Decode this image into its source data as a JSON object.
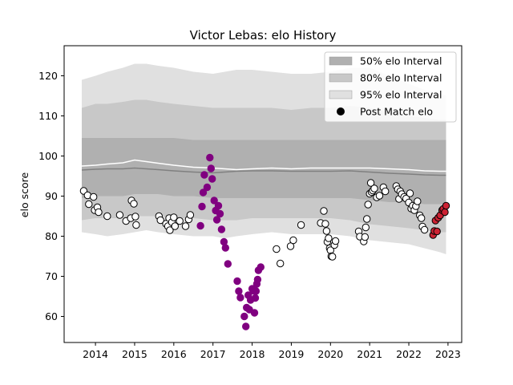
{
  "chart_data": {
    "type": "scatter",
    "title": "Victor Lebas: elo History",
    "xlabel": "",
    "ylabel": "elo score",
    "xlim": [
      2013.2,
      2023.35
    ],
    "ylim": [
      53.5,
      127.5
    ],
    "x_ticks": [
      2014,
      2015,
      2016,
      2017,
      2018,
      2019,
      2020,
      2021,
      2022,
      2023
    ],
    "y_ticks": [
      60,
      70,
      80,
      90,
      100,
      110,
      120
    ],
    "grid": false,
    "legend_position": "top-right",
    "legend": [
      {
        "label": "50% elo Interval",
        "kind": "band",
        "color": "#b0b0b0"
      },
      {
        "label": "80% elo Interval",
        "kind": "band",
        "color": "#c8c8c8"
      },
      {
        "label": "95% elo Interval",
        "kind": "band",
        "color": "#e0e0e0"
      },
      {
        "label": "Post Match elo",
        "kind": "point",
        "color": "#000000"
      }
    ],
    "colors": {
      "band_50": "#b0b0b0",
      "band_80": "#c8c8c8",
      "band_95": "#e0e0e0",
      "median_line": "#808080",
      "mean_line": "#ffffff",
      "point_default": "#ffffff",
      "point_purple": "#800080",
      "point_red": "#cc2233"
    },
    "bands": {
      "x": [
        2013.65,
        2014.0,
        2014.3,
        2014.7,
        2015.0,
        2015.3,
        2015.6,
        2016.0,
        2016.5,
        2017.0,
        2017.3,
        2017.6,
        2018.0,
        2018.5,
        2019.0,
        2019.5,
        2020.0,
        2020.5,
        2021.0,
        2021.5,
        2022.0,
        2022.4,
        2022.8,
        2022.95
      ],
      "p95_low": [
        81,
        80.5,
        80,
        80.5,
        81,
        81.5,
        81,
        80.5,
        80,
        80,
        79.5,
        80,
        80.5,
        81,
        80.5,
        80.5,
        80.5,
        80,
        79,
        78.5,
        78,
        77,
        76,
        75.5
      ],
      "p95_high": [
        119,
        120,
        121,
        122,
        123,
        123,
        122.5,
        122,
        121,
        120.5,
        121,
        121.5,
        121.5,
        121,
        120.5,
        120.5,
        121,
        122,
        122,
        120,
        118,
        116.5,
        115.5,
        115
      ],
      "p80_low": [
        84,
        84.5,
        84.5,
        84.5,
        85,
        85,
        85,
        84.5,
        84.5,
        84,
        84,
        84,
        84.5,
        84.5,
        84.5,
        84.5,
        84.5,
        84,
        83,
        82.5,
        82,
        81.5,
        81,
        81
      ],
      "p80_high": [
        112,
        113,
        113,
        113.5,
        114,
        114,
        113.5,
        113,
        112.5,
        112,
        112,
        112,
        112,
        112,
        111.5,
        112,
        112,
        112.5,
        112,
        111,
        110,
        109.5,
        109,
        109
      ],
      "p50_low": [
        89.5,
        90,
        90,
        90,
        90.5,
        90.5,
        90.5,
        90,
        90,
        89.5,
        89.5,
        89.5,
        89.5,
        89.5,
        89.5,
        89.5,
        89.5,
        89.5,
        89,
        88.5,
        88.5,
        88,
        88,
        88
      ],
      "p50_high": [
        104.5,
        104.5,
        104.5,
        104.5,
        104.5,
        104.5,
        104.5,
        104.5,
        104,
        104,
        104,
        104,
        104,
        104,
        104,
        104,
        104,
        104,
        104,
        104,
        104,
        104,
        104,
        104
      ],
      "median": [
        96.5,
        96.7,
        96.8,
        96.8,
        97.0,
        96.8,
        96.6,
        96.3,
        96.0,
        95.8,
        96.0,
        96.2,
        96.3,
        96.3,
        96.2,
        96.2,
        96.2,
        96.3,
        96.0,
        95.7,
        95.5,
        95.3,
        95.2,
        95.2
      ],
      "mean": [
        97.5,
        97.7,
        98.0,
        98.3,
        99.0,
        98.6,
        98.2,
        97.7,
        97.2,
        97.0,
        96.8,
        96.6,
        96.8,
        97.0,
        96.8,
        97.0,
        97.0,
        97.0,
        97.0,
        96.8,
        96.6,
        96.3,
        96.2,
        96.2
      ]
    },
    "points_default": [
      [
        2013.7,
        91.3
      ],
      [
        2013.8,
        90.2
      ],
      [
        2013.83,
        88.0
      ],
      [
        2013.95,
        89.8
      ],
      [
        2013.98,
        86.5
      ],
      [
        2014.05,
        87.2
      ],
      [
        2014.08,
        86.0
      ],
      [
        2014.3,
        85.0
      ],
      [
        2014.62,
        85.3
      ],
      [
        2014.78,
        83.8
      ],
      [
        2014.9,
        84.5
      ],
      [
        2014.92,
        88.9
      ],
      [
        2014.98,
        88.1
      ],
      [
        2015.02,
        84.9
      ],
      [
        2015.04,
        82.8
      ],
      [
        2015.62,
        85.0
      ],
      [
        2015.66,
        84.0
      ],
      [
        2015.8,
        83.1
      ],
      [
        2015.85,
        82.5
      ],
      [
        2015.88,
        84.5
      ],
      [
        2015.9,
        81.5
      ],
      [
        2015.95,
        83.5
      ],
      [
        2016.0,
        84.7
      ],
      [
        2016.03,
        82.5
      ],
      [
        2016.15,
        83.8
      ],
      [
        2016.3,
        82.5
      ],
      [
        2016.38,
        84.2
      ],
      [
        2016.42,
        85.3
      ],
      [
        2018.62,
        76.8
      ],
      [
        2018.72,
        73.2
      ],
      [
        2018.98,
        77.5
      ],
      [
        2019.05,
        79.0
      ],
      [
        2019.25,
        82.8
      ],
      [
        2019.75,
        83.3
      ],
      [
        2019.83,
        86.3
      ],
      [
        2019.87,
        83.1
      ],
      [
        2019.9,
        81.3
      ],
      [
        2019.92,
        78.6
      ],
      [
        2019.95,
        79.5
      ],
      [
        2019.98,
        77.0
      ],
      [
        2020.0,
        76.5
      ],
      [
        2020.02,
        75.0
      ],
      [
        2020.05,
        74.9
      ],
      [
        2020.1,
        77.8
      ],
      [
        2020.13,
        78.8
      ],
      [
        2020.72,
        81.2
      ],
      [
        2020.75,
        79.9
      ],
      [
        2020.85,
        78.7
      ],
      [
        2020.88,
        79.8
      ],
      [
        2020.9,
        82.2
      ],
      [
        2020.93,
        84.3
      ],
      [
        2020.96,
        87.9
      ],
      [
        2021.0,
        90.6
      ],
      [
        2021.03,
        93.3
      ],
      [
        2021.05,
        91.0
      ],
      [
        2021.08,
        91.4
      ],
      [
        2021.12,
        91.9
      ],
      [
        2021.18,
        89.7
      ],
      [
        2021.25,
        90.1
      ],
      [
        2021.35,
        92.2
      ],
      [
        2021.4,
        91.2
      ],
      [
        2021.68,
        92.5
      ],
      [
        2021.72,
        91.7
      ],
      [
        2021.75,
        89.3
      ],
      [
        2021.78,
        91.2
      ],
      [
        2021.82,
        90.5
      ],
      [
        2021.88,
        89.8
      ],
      [
        2021.93,
        89.4
      ],
      [
        2022.0,
        88.4
      ],
      [
        2022.03,
        90.7
      ],
      [
        2022.06,
        86.9
      ],
      [
        2022.1,
        87.6
      ],
      [
        2022.14,
        86.5
      ],
      [
        2022.18,
        87.5
      ],
      [
        2022.22,
        88.7
      ],
      [
        2022.28,
        85.2
      ],
      [
        2022.32,
        84.5
      ],
      [
        2022.35,
        82.4
      ],
      [
        2022.4,
        81.6
      ]
    ],
    "points_purple": [
      [
        2016.68,
        82.6
      ],
      [
        2016.72,
        87.4
      ],
      [
        2016.75,
        90.9
      ],
      [
        2016.78,
        95.3
      ],
      [
        2016.85,
        92.2
      ],
      [
        2016.92,
        99.6
      ],
      [
        2016.95,
        96.9
      ],
      [
        2016.98,
        94.3
      ],
      [
        2017.03,
        88.9
      ],
      [
        2017.07,
        86.4
      ],
      [
        2017.1,
        84.1
      ],
      [
        2017.14,
        87.6
      ],
      [
        2017.18,
        85.6
      ],
      [
        2017.22,
        81.7
      ],
      [
        2017.28,
        78.6
      ],
      [
        2017.32,
        77.1
      ],
      [
        2017.38,
        73.1
      ],
      [
        2017.62,
        68.8
      ],
      [
        2017.66,
        66.3
      ],
      [
        2017.7,
        64.7
      ],
      [
        2017.8,
        60.0
      ],
      [
        2017.84,
        57.5
      ],
      [
        2017.86,
        62.2
      ],
      [
        2017.9,
        65.3
      ],
      [
        2017.93,
        61.7
      ],
      [
        2017.96,
        64.1
      ],
      [
        2018.0,
        66.9
      ],
      [
        2018.03,
        66.4
      ],
      [
        2018.06,
        60.9
      ],
      [
        2018.08,
        64.6
      ],
      [
        2018.1,
        66.3
      ],
      [
        2018.12,
        68.1
      ],
      [
        2018.14,
        69.2
      ],
      [
        2018.16,
        71.5
      ],
      [
        2018.22,
        72.3
      ]
    ],
    "points_red": [
      [
        2022.62,
        80.3
      ],
      [
        2022.65,
        81.3
      ],
      [
        2022.68,
        83.9
      ],
      [
        2022.72,
        81.2
      ],
      [
        2022.75,
        84.6
      ],
      [
        2022.8,
        85.2
      ],
      [
        2022.85,
        86.5
      ],
      [
        2022.88,
        86.8
      ],
      [
        2022.92,
        86.0
      ],
      [
        2022.95,
        87.6
      ]
    ]
  }
}
